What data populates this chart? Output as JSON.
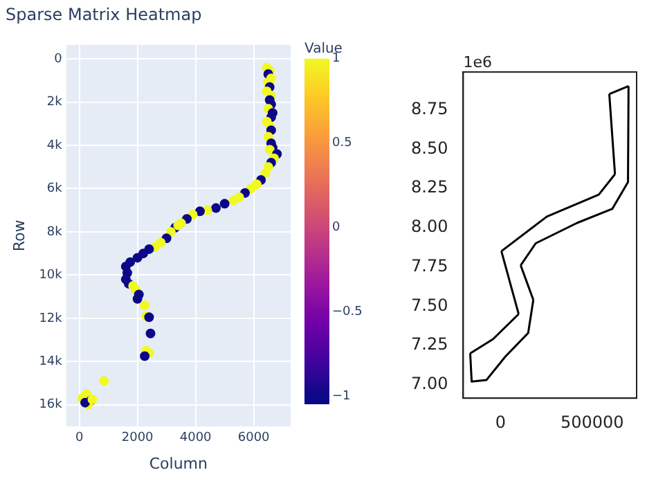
{
  "chart_data": [
    {
      "type": "scatter",
      "title": "Sparse Matrix Heatmap",
      "xlabel": "Column",
      "ylabel": "Row",
      "clabel": "Value",
      "marker": "circle",
      "grid": true,
      "x": [
        6450,
        6550,
        6500,
        6600,
        6480,
        6550,
        6450,
        6600,
        6550,
        6600,
        6500,
        6650,
        6600,
        6450,
        6550,
        6600,
        6500,
        6600,
        6650,
        6550,
        6800,
        6700,
        6600,
        6500,
        6400,
        6250,
        6100,
        5900,
        5700,
        5500,
        5300,
        5000,
        4700,
        4400,
        4150,
        3900,
        3700,
        3500,
        3300,
        3400,
        3150,
        3000,
        2800,
        2600,
        2400,
        2200,
        2000,
        1750,
        1600,
        1650,
        1600,
        1700,
        1850,
        1950,
        2050,
        2000,
        2250,
        2300,
        2400,
        2450,
        2300,
        2400,
        2250,
        850,
        100,
        250,
        400,
        300,
        200,
        450
      ],
      "values": [
        400,
        550,
        700,
        900,
        1100,
        1300,
        1500,
        1700,
        1900,
        2100,
        2300,
        2500,
        2700,
        2900,
        3100,
        3300,
        3600,
        3900,
        4100,
        4200,
        4400,
        4600,
        4800,
        5000,
        5300,
        5600,
        5800,
        6000,
        6200,
        6400,
        6550,
        6700,
        6900,
        7000,
        7050,
        7200,
        7400,
        7600,
        7800,
        7700,
        8000,
        8300,
        8500,
        8700,
        8800,
        9000,
        9200,
        9400,
        9600,
        9900,
        10200,
        10400,
        10500,
        10700,
        10900,
        11100,
        11400,
        11900,
        11950,
        12700,
        13500,
        13600,
        13750,
        14900,
        15700,
        15500,
        15800,
        16000,
        15900,
        15750
      ],
      "cvalues": [
        1,
        1,
        -1,
        1,
        1,
        -1,
        1,
        1,
        -1,
        -1,
        1,
        -1,
        -1,
        1,
        1,
        -1,
        1,
        -1,
        -1,
        1,
        -1,
        1,
        -1,
        1,
        1,
        -1,
        1,
        1,
        -1,
        1,
        1,
        -1,
        -1,
        1,
        -1,
        1,
        -1,
        1,
        -1,
        1,
        1,
        -1,
        1,
        1,
        -1,
        -1,
        -1,
        -1,
        -1,
        -1,
        -1,
        -1,
        1,
        1,
        -1,
        -1,
        1,
        1,
        -1,
        -1,
        1,
        1,
        -1,
        1,
        1,
        1,
        -1,
        1,
        -1,
        1
      ],
      "clim": [
        -1,
        1
      ],
      "cticks": [
        -1,
        -0.5,
        0,
        0.5,
        1
      ],
      "xlim": [
        -450,
        7270
      ],
      "xticks": [
        0,
        2000,
        4000,
        6000
      ],
      "ylim": [
        17000,
        -650
      ],
      "yticks": [
        0,
        {
          "value": 2000,
          "label": "2k"
        },
        {
          "value": 4000,
          "label": "4k"
        },
        {
          "value": 6000,
          "label": "6k"
        },
        {
          "value": 8000,
          "label": "8k"
        },
        {
          "value": 10000,
          "label": "10k"
        },
        {
          "value": 12000,
          "label": "12k"
        },
        {
          "value": 14000,
          "label": "14k"
        },
        {
          "value": 16000,
          "label": "16k"
        }
      ]
    },
    {
      "type": "line",
      "marker": "none",
      "grid": false,
      "annotations": [
        "1e6"
      ],
      "series": [
        {
          "color": "#000000",
          "x": [
            593000,
            698000
          ],
          "values": [
            8.85,
            8.9
          ]
        },
        {
          "color": "#000000",
          "x": [
            698000,
            695000,
            610000,
            418000,
            192000,
            110000
          ],
          "values": [
            8.9,
            8.29,
            8.12,
            8.03,
            7.9,
            7.76
          ]
        },
        {
          "color": "#000000",
          "x": [
            110000,
            179000
          ],
          "values": [
            7.76,
            7.54
          ]
        },
        {
          "color": "#000000",
          "x": [
            179000,
            151000,
            27000,
            -77000,
            -157000,
            -165000
          ],
          "values": [
            7.54,
            7.33,
            7.18,
            7.03,
            7.02,
            7.2
          ]
        },
        {
          "color": "#000000",
          "x": [
            -165000,
            -41000,
            99000
          ],
          "values": [
            7.2,
            7.29,
            7.45
          ]
        },
        {
          "color": "#000000",
          "x": [
            99000,
            5000
          ],
          "values": [
            7.45,
            7.85
          ]
        },
        {
          "color": "#000000",
          "x": [
            5000,
            253000,
            536000,
            624000
          ],
          "values": [
            7.85,
            8.07,
            8.21,
            8.34
          ]
        },
        {
          "color": "#000000",
          "x": [
            624000,
            593000
          ],
          "values": [
            8.34,
            8.85
          ]
        }
      ],
      "xlim": [
        -203000,
        742000
      ],
      "xticks": [
        0,
        500000
      ],
      "ylim": [
        6.915,
        8.99
      ],
      "yticks": [
        {
          "value": 7,
          "label": "7.00"
        },
        7.25,
        {
          "value": 7.5,
          "label": "7.50"
        },
        7.75,
        {
          "value": 8,
          "label": "8.00"
        },
        8.25,
        {
          "value": 8.5,
          "label": "8.50"
        },
        8.75
      ]
    }
  ]
}
